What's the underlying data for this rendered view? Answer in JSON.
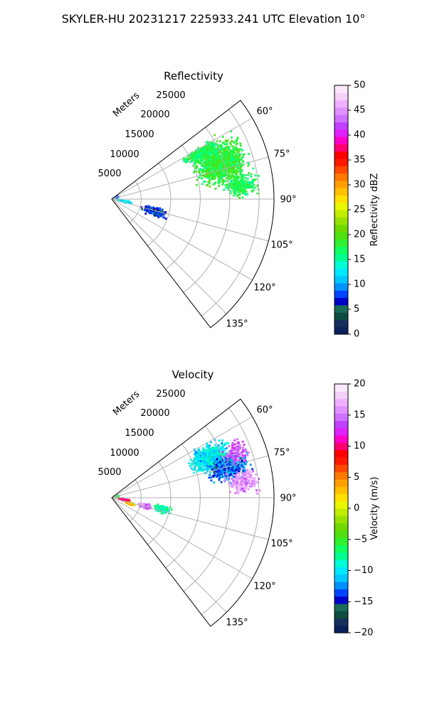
{
  "suptitle": "SKYLER-HU  20231217  225933.241 UTC Elevation 10°",
  "chart_data": [
    {
      "type": "heatmap",
      "subtype": "polar-sector-radar-scan",
      "title": "Reflectivity",
      "radial_label": "Meters",
      "radial_range": [
        0,
        27500
      ],
      "radial_ticks": [
        "5000",
        "10000",
        "15000",
        "20000",
        "25000"
      ],
      "azimuth_range_deg": [
        52.5,
        142.5
      ],
      "azimuth_ticks": [
        "60°",
        "75°",
        "90°",
        "105°",
        "120°",
        "135°"
      ],
      "grid": true,
      "colorbar": {
        "label": "Reflectivity dBZ",
        "min": 0,
        "max": 50,
        "ticks": [
          "0",
          "5",
          "10",
          "15",
          "20",
          "25",
          "30",
          "35",
          "40",
          "45",
          "50"
        ],
        "colors": [
          "#0b1f5a",
          "#16305d",
          "#0d4d3e",
          "#1a6a58",
          "#0000c8",
          "#0044ff",
          "#0090ff",
          "#00c8ff",
          "#00e8ff",
          "#00ffd8",
          "#00ff90",
          "#10ff60",
          "#30f030",
          "#50e010",
          "#70d800",
          "#98e000",
          "#c0ec00",
          "#e8f800",
          "#ffe000",
          "#ffc000",
          "#ffa000",
          "#ff7800",
          "#ff4800",
          "#ff1800",
          "#ff0000",
          "#ff0070",
          "#ff00c8",
          "#e020ff",
          "#c040ff",
          "#d070ff",
          "#e090ff",
          "#eeb0ff",
          "#f4d0f8",
          "#fae8fa"
        ]
      },
      "echo_clusters": [
        {
          "az_deg": 72,
          "range_m": 19500,
          "az_spread": 9,
          "range_spread": 3800,
          "value_dbz": 18,
          "count": 1100
        },
        {
          "az_deg": 63,
          "range_m": 17200,
          "az_spread": 3,
          "range_spread": 2400,
          "value_dbz": 17,
          "count": 350
        },
        {
          "az_deg": 84,
          "range_m": 22000,
          "az_spread": 4,
          "range_spread": 2500,
          "value_dbz": 17,
          "count": 220
        },
        {
          "az_deg": 106,
          "range_m": 7500,
          "az_spread": 5,
          "range_spread": 1600,
          "value_dbz": 7,
          "count": 240
        },
        {
          "az_deg": 101,
          "range_m": 2300,
          "az_spread": 3,
          "range_spread": 900,
          "value_dbz": 13,
          "count": 90
        },
        {
          "az_deg": 72,
          "range_m": 800,
          "az_spread": 8,
          "range_spread": 400,
          "value_dbz": 9,
          "count": 30
        }
      ]
    },
    {
      "type": "heatmap",
      "subtype": "polar-sector-radar-scan",
      "title": "Velocity",
      "radial_label": "Meters",
      "radial_range": [
        0,
        27500
      ],
      "radial_ticks": [
        "5000",
        "10000",
        "15000",
        "20000",
        "25000"
      ],
      "azimuth_range_deg": [
        52.5,
        142.5
      ],
      "azimuth_ticks": [
        "60°",
        "75°",
        "90°",
        "105°",
        "120°",
        "135°"
      ],
      "grid": true,
      "colorbar": {
        "label": "Velocity (m/s)",
        "min": -20,
        "max": 20,
        "ticks": [
          "−20",
          "−15",
          "−10",
          "−5",
          "0",
          "5",
          "10",
          "15",
          "20"
        ],
        "colors": [
          "#0b1f5a",
          "#16305d",
          "#0d4d3e",
          "#1a6a58",
          "#0000c8",
          "#0044ff",
          "#0090ff",
          "#00c8ff",
          "#00e8ff",
          "#00ffd8",
          "#00ff90",
          "#10ff60",
          "#30f030",
          "#50e010",
          "#70d800",
          "#98e000",
          "#c0ec00",
          "#e8f800",
          "#ffe000",
          "#ffc000",
          "#ffa000",
          "#ff7800",
          "#ff4800",
          "#ff1800",
          "#ff0000",
          "#ff0070",
          "#ff00c8",
          "#e020ff",
          "#c040ff",
          "#d070ff",
          "#e090ff",
          "#eeb0ff",
          "#f4d0f8",
          "#fae8fa"
        ]
      },
      "echo_clusters": [
        {
          "az_deg": 68,
          "range_m": 18000,
          "az_spread": 6,
          "range_spread": 2800,
          "value_ms": -10,
          "count": 700
        },
        {
          "az_deg": 76,
          "range_m": 20500,
          "az_spread": 5,
          "range_spread": 3000,
          "value_ms": -13,
          "count": 450
        },
        {
          "az_deg": 83,
          "range_m": 22500,
          "az_spread": 4,
          "range_spread": 2200,
          "value_ms": 16,
          "count": 260
        },
        {
          "az_deg": 70,
          "range_m": 22500,
          "az_spread": 4,
          "range_spread": 1800,
          "value_ms": 14,
          "count": 120
        },
        {
          "az_deg": 104,
          "range_m": 5800,
          "az_spread": 3,
          "range_spread": 900,
          "value_ms": 15,
          "count": 150
        },
        {
          "az_deg": 103,
          "range_m": 8800,
          "az_spread": 4,
          "range_spread": 1200,
          "value_ms": -8,
          "count": 100
        },
        {
          "az_deg": 100,
          "range_m": 2200,
          "az_spread": 3,
          "range_spread": 900,
          "value_ms": 10,
          "count": 120
        },
        {
          "az_deg": 108,
          "range_m": 3300,
          "az_spread": 3,
          "range_spread": 700,
          "value_ms": 3,
          "count": 60
        },
        {
          "az_deg": 72,
          "range_m": 800,
          "az_spread": 8,
          "range_spread": 400,
          "value_ms": -6,
          "count": 30
        }
      ]
    }
  ]
}
